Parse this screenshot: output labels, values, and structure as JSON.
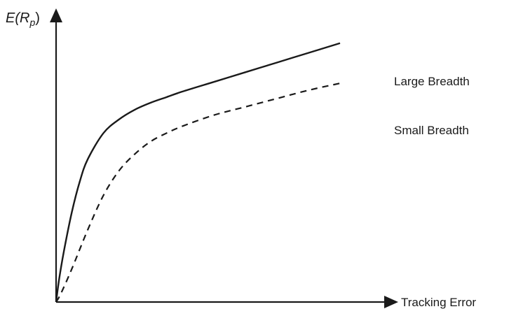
{
  "chart_data": {
    "type": "line",
    "title": "",
    "ylabel": {
      "prefix": "E(R",
      "subscript": "p",
      "suffix": ")"
    },
    "xlabel": "Tracking Error",
    "xlim": [
      0,
      10
    ],
    "ylim": [
      0,
      10
    ],
    "grid": false,
    "legend": "none",
    "series": [
      {
        "name": "Large Breadth",
        "style": "solid",
        "color": "#1a1a1a",
        "x": [
          0,
          0.1,
          0.25,
          0.5,
          0.75,
          1.0,
          1.5,
          2.0,
          2.5,
          3.0,
          3.5,
          4.0,
          5.0,
          6.0,
          7.0,
          8.0,
          9.0
        ],
        "y": [
          0,
          0.85,
          1.85,
          3.25,
          4.35,
          5.15,
          6.1,
          6.6,
          6.95,
          7.2,
          7.4,
          7.6,
          7.95,
          8.3,
          8.65,
          9.0,
          9.35
        ]
      },
      {
        "name": "Small Breadth",
        "style": "dashed",
        "color": "#1a1a1a",
        "x": [
          0,
          0.15,
          0.5,
          1.0,
          1.5,
          2.0,
          2.5,
          3.0,
          3.5,
          4.0,
          5.0,
          6.0,
          7.0,
          8.0,
          9.0
        ],
        "y": [
          0,
          0.3,
          1.2,
          2.6,
          3.85,
          4.75,
          5.35,
          5.8,
          6.1,
          6.35,
          6.75,
          7.05,
          7.35,
          7.65,
          7.9
        ]
      }
    ]
  }
}
